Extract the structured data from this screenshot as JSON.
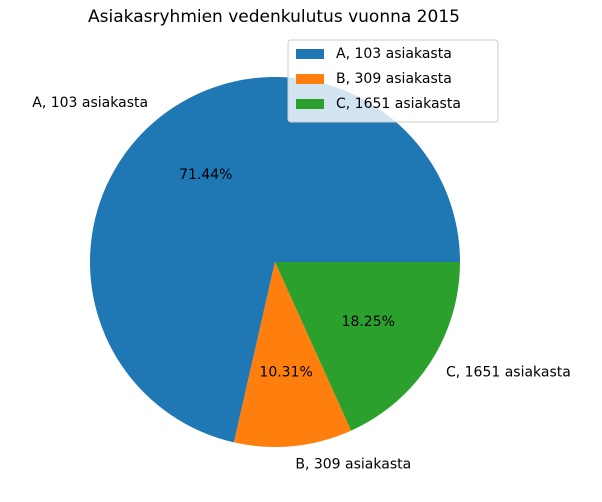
{
  "chart_data": {
    "type": "pie",
    "title": "Asiakasryhmien vedenkulutus vuonna 2015",
    "slices": [
      {
        "label": "A, 103 asiakasta",
        "pct_label": "71.44%",
        "value": 71.44,
        "color": "#1f77b4"
      },
      {
        "label": "B, 309 asiakasta",
        "pct_label": "10.31%",
        "value": 10.31,
        "color": "#ff7f0e"
      },
      {
        "label": "C, 1651 asiakasta",
        "pct_label": "18.25%",
        "value": 18.25,
        "color": "#2ca02c"
      }
    ],
    "start_angle_deg": 0,
    "direction": "counterclockwise",
    "legend": {
      "placement": "upper right",
      "entries": [
        "A, 103 asiakasta",
        "B, 309 asiakasta",
        "C, 1651 asiakasta"
      ]
    }
  }
}
